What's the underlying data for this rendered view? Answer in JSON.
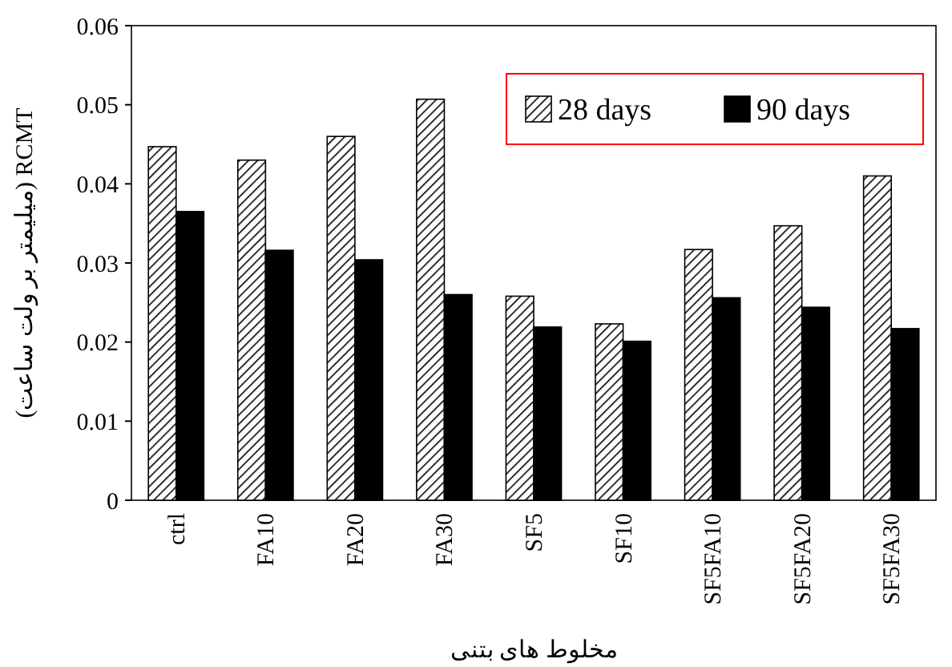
{
  "chart_data": {
    "type": "bar",
    "xlabel": "مخلوط های بتنی",
    "ylabel": "(میلیمتر بر ولت ساعت) RCMT",
    "categories": [
      "ctrl",
      "FA10",
      "FA20",
      "FA30",
      "SF5",
      "SF10",
      "SF5FA10",
      "SF5FA20",
      "SF5FA30"
    ],
    "series": [
      {
        "name": "28 days",
        "color": "#000000",
        "values": [
          0.0447,
          0.043,
          0.046,
          0.0507,
          0.0258,
          0.0223,
          0.0317,
          0.0347,
          0.041
        ]
      },
      {
        "name": "90 days",
        "color": "#000000",
        "values": [
          0.0365,
          0.0316,
          0.0304,
          0.026,
          0.0219,
          0.0201,
          0.0256,
          0.0244,
          0.0217
        ]
      }
    ],
    "ylim": [
      0,
      0.06
    ],
    "yticks": [
      0,
      0.01,
      0.02,
      0.03,
      0.04,
      0.05,
      0.06
    ],
    "grid": false,
    "legend": "top right"
  }
}
